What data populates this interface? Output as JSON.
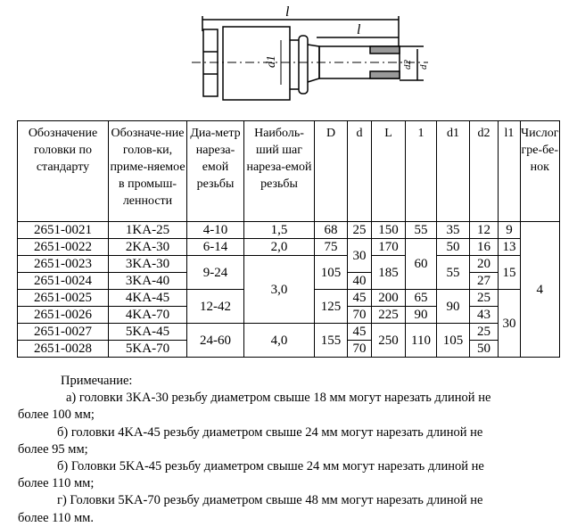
{
  "drawing": {
    "label_L": "l",
    "label_l": "l",
    "label_d1": "d1",
    "label_d2": "d2",
    "label_d": "d"
  },
  "table": {
    "headers": [
      "Обозначение головки по стандарту",
      "Обозначе-ние голов-ки, приме-няемое в промыш-ленности",
      "Диа-метр нареза-емой резьбы",
      "Наиболь-ший шаг нареза-емой резьбы",
      "D",
      "d",
      "L",
      "1",
      "d1",
      "d2",
      "l1",
      "Числог гре-бе-нок"
    ],
    "std": [
      "2651-0021",
      "2651-0022",
      "2651-0023",
      "2651-0024",
      "2651-0025",
      "2651-0026",
      "2651-0027",
      "2651-0028"
    ],
    "ind": [
      "1KA-25",
      "2KA-30",
      "3KA-30",
      "3KA-40",
      "4KA-45",
      "4KA-70",
      "5KA-45",
      "5KA-70"
    ],
    "diam": [
      "4-10",
      "6-14",
      "9-24",
      "12-42",
      "24-60"
    ],
    "pitch": [
      "1,5",
      "2,0",
      "3,0",
      "4,0"
    ],
    "D": [
      "68",
      "75",
      "105",
      "125",
      "155"
    ],
    "d": [
      "25",
      "30",
      "40",
      "45",
      "70",
      "45",
      "70"
    ],
    "L": [
      "150",
      "170",
      "185",
      "200",
      "225",
      "250"
    ],
    "l": [
      "55",
      "60",
      "65",
      "90",
      "110"
    ],
    "d1": [
      "35",
      "50",
      "55",
      "90",
      "105"
    ],
    "d2": [
      "12",
      "16",
      "20",
      "27",
      "25",
      "43",
      "25",
      "50"
    ],
    "l1": [
      "9",
      "13",
      "15",
      "30"
    ],
    "combs": "4"
  },
  "notes": {
    "title": "Примечание:",
    "a": "а) головки 3KA-30 резьбу диаметром свыше 18 мм могут нарезать длиной не",
    "a2": "более 100 мм;",
    "b": "б) головки 4KA-45 резьбу диаметром свыше 24 мм могут нарезать длиной не",
    "b2": "более 95 мм;",
    "c": "б) Головки 5KA-45 резьбу диаметром свыше 24 мм могут нарезать длиной не",
    "c2": "более 110 мм;",
    "g": "г) Головки 5KA-70 резьбу диаметром свыше 48 мм могут нарезать длиной не",
    "g2": "более 110 мм."
  }
}
